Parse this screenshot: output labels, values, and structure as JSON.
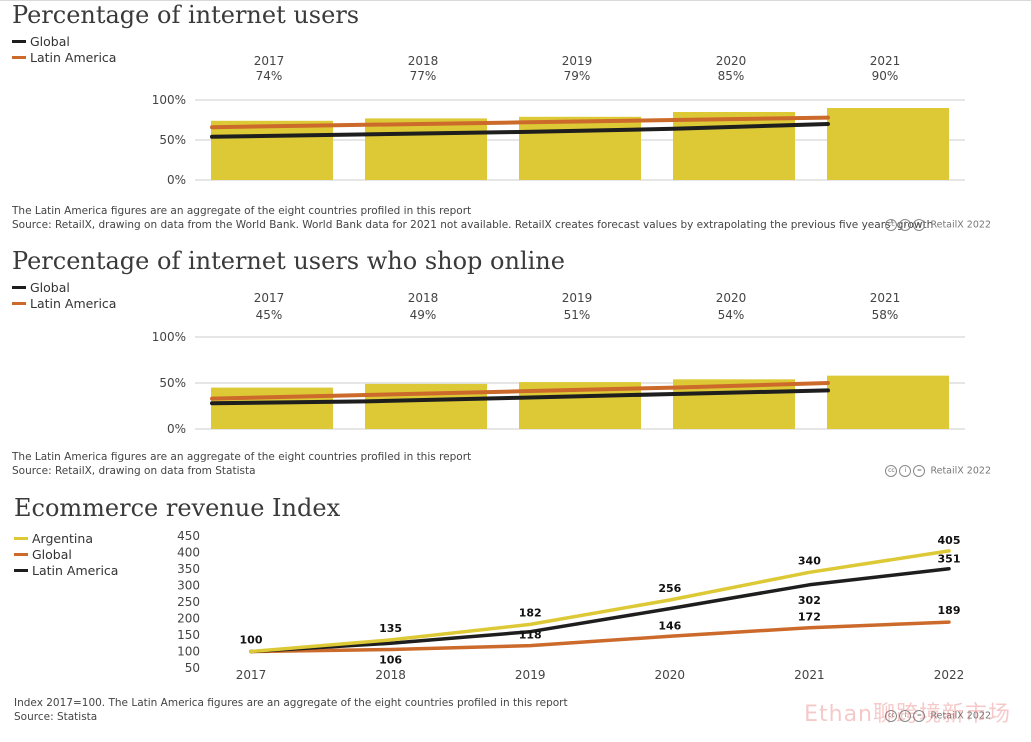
{
  "panels": [
    {
      "title": "Percentage of internet users",
      "legend": [
        {
          "label": "Global",
          "color": "#1e1e1e"
        },
        {
          "label": "Latin America",
          "color": "#cc6a2b"
        }
      ],
      "notes": [
        "The Latin America figures are an aggregate of the eight countries profiled in this report",
        "Source: RetailX, drawing on data from the World Bank. World Bank data for 2021 not available. RetailX creates forecast values by extrapolating the previous five years' growth"
      ],
      "credit": "RetailX 2022"
    },
    {
      "title": "Percentage of internet users who shop online",
      "legend": [
        {
          "label": "Global",
          "color": "#1e1e1e"
        },
        {
          "label": "Latin America",
          "color": "#cc6a2b"
        }
      ],
      "notes": [
        "The Latin America figures are an aggregate of the eight countries profiled in this report",
        "Source: RetailX, drawing on data from Statista"
      ],
      "credit": "RetailX 2022"
    },
    {
      "title": "Ecommerce revenue Index",
      "legend": [
        {
          "label": "Argentina",
          "color": "#ddc935"
        },
        {
          "label": "Global",
          "color": "#cc6a2b"
        },
        {
          "label": "Latin America",
          "color": "#1e1e1e"
        }
      ],
      "notes": [
        "Index 2017=100. The Latin America figures are an aggregate of the eight countries profiled in this report",
        "Source: Statista"
      ],
      "credit": "RetailX 2022"
    }
  ],
  "watermark": "Ethan聊跨境新市场",
  "chart_data": [
    {
      "type": "bar",
      "title": "Percentage of internet users",
      "categories": [
        "2017",
        "2018",
        "2019",
        "2020",
        "2021"
      ],
      "value_labels": [
        "74%",
        "77%",
        "79%",
        "85%",
        "90%"
      ],
      "values": [
        74,
        77,
        79,
        85,
        90
      ],
      "lines": [
        {
          "name": "Global",
          "values": [
            54,
            57,
            60,
            64,
            70
          ]
        },
        {
          "name": "Latin America",
          "values": [
            66,
            69,
            72,
            75,
            78
          ]
        }
      ],
      "yticks": [
        "0%",
        "50%",
        "100%"
      ],
      "ylim": [
        0,
        100
      ],
      "colors": {
        "bar": "#ddc935",
        "Global": "#1e1e1e",
        "Latin America": "#cc6a2b"
      }
    },
    {
      "type": "bar",
      "title": "Percentage of internet users who shop online",
      "categories": [
        "2017",
        "2018",
        "2019",
        "2020",
        "2021"
      ],
      "value_labels": [
        "45%",
        "49%",
        "51%",
        "54%",
        "58%"
      ],
      "values": [
        45,
        49,
        51,
        54,
        58
      ],
      "lines": [
        {
          "name": "Global",
          "values": [
            28,
            30,
            34,
            38,
            42
          ]
        },
        {
          "name": "Latin America",
          "values": [
            33,
            37,
            41,
            45,
            50
          ]
        }
      ],
      "yticks": [
        "0%",
        "50%",
        "100%"
      ],
      "ylim": [
        0,
        100
      ],
      "colors": {
        "bar": "#ddc935",
        "Global": "#1e1e1e",
        "Latin America": "#cc6a2b"
      }
    },
    {
      "type": "line",
      "title": "Ecommerce revenue Index",
      "x": [
        "2017",
        "2018",
        "2019",
        "2020",
        "2021",
        "2022"
      ],
      "yticks": [
        50,
        100,
        150,
        200,
        250,
        300,
        350,
        400,
        450
      ],
      "ylim": [
        50,
        450
      ],
      "series": [
        {
          "name": "Argentina",
          "color": "#ddc935",
          "values": [
            100,
            135,
            182,
            256,
            340,
            405
          ],
          "labels": [
            "",
            "135",
            "182",
            "256",
            "340",
            "405"
          ]
        },
        {
          "name": "Latin America",
          "color": "#1e1e1e",
          "values": [
            100,
            125,
            160,
            230,
            302,
            351
          ],
          "labels": [
            "100",
            "",
            "",
            "",
            "302",
            "351"
          ]
        },
        {
          "name": "Global",
          "color": "#cc6a2b",
          "values": [
            100,
            106,
            118,
            146,
            172,
            189
          ],
          "labels": [
            "",
            "106",
            "118",
            "146",
            "172",
            "189"
          ]
        }
      ]
    }
  ]
}
